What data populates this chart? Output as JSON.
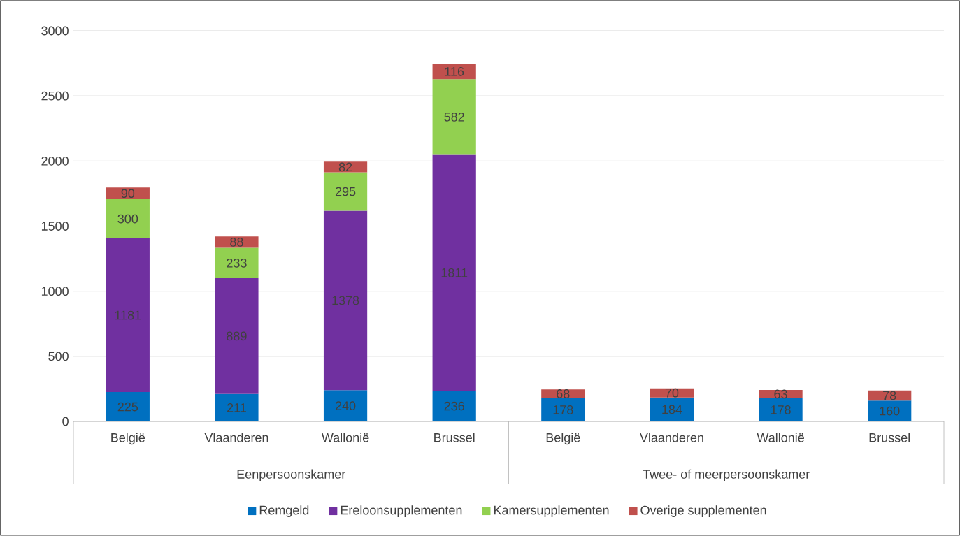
{
  "chart_data": {
    "type": "bar",
    "stacked": true,
    "data_labels": true,
    "grid": "y",
    "legend": "bottom",
    "categories": [
      "België",
      "Vlaanderen",
      "Wallonië",
      "Brussel",
      "België",
      "Vlaanderen",
      "Wallonië",
      "Brussel"
    ],
    "series": [
      {
        "name": "Remgeld",
        "color": "#0070c0",
        "values": [
          225,
          211,
          240,
          236,
          178,
          184,
          178,
          160
        ]
      },
      {
        "name": "Ereloonsupplementen",
        "color": "#7030a0",
        "values": [
          1181,
          889,
          1378,
          1811,
          null,
          null,
          null,
          null
        ]
      },
      {
        "name": "Kamersupplementen",
        "color": "#92d050",
        "values": [
          300,
          233,
          295,
          582,
          null,
          null,
          null,
          null
        ]
      },
      {
        "name": "Overige supplementen",
        "color": "#c0504d",
        "values": [
          90,
          88,
          82,
          116,
          68,
          70,
          63,
          78
        ]
      }
    ],
    "ylim": [
      0,
      3000
    ],
    "yticks": [
      0,
      500,
      1000,
      1500,
      2000,
      2500,
      3000
    ],
    "annotations": [
      "Eenpersoonskamer",
      "Twee- of meerpersoonskamer"
    ]
  }
}
